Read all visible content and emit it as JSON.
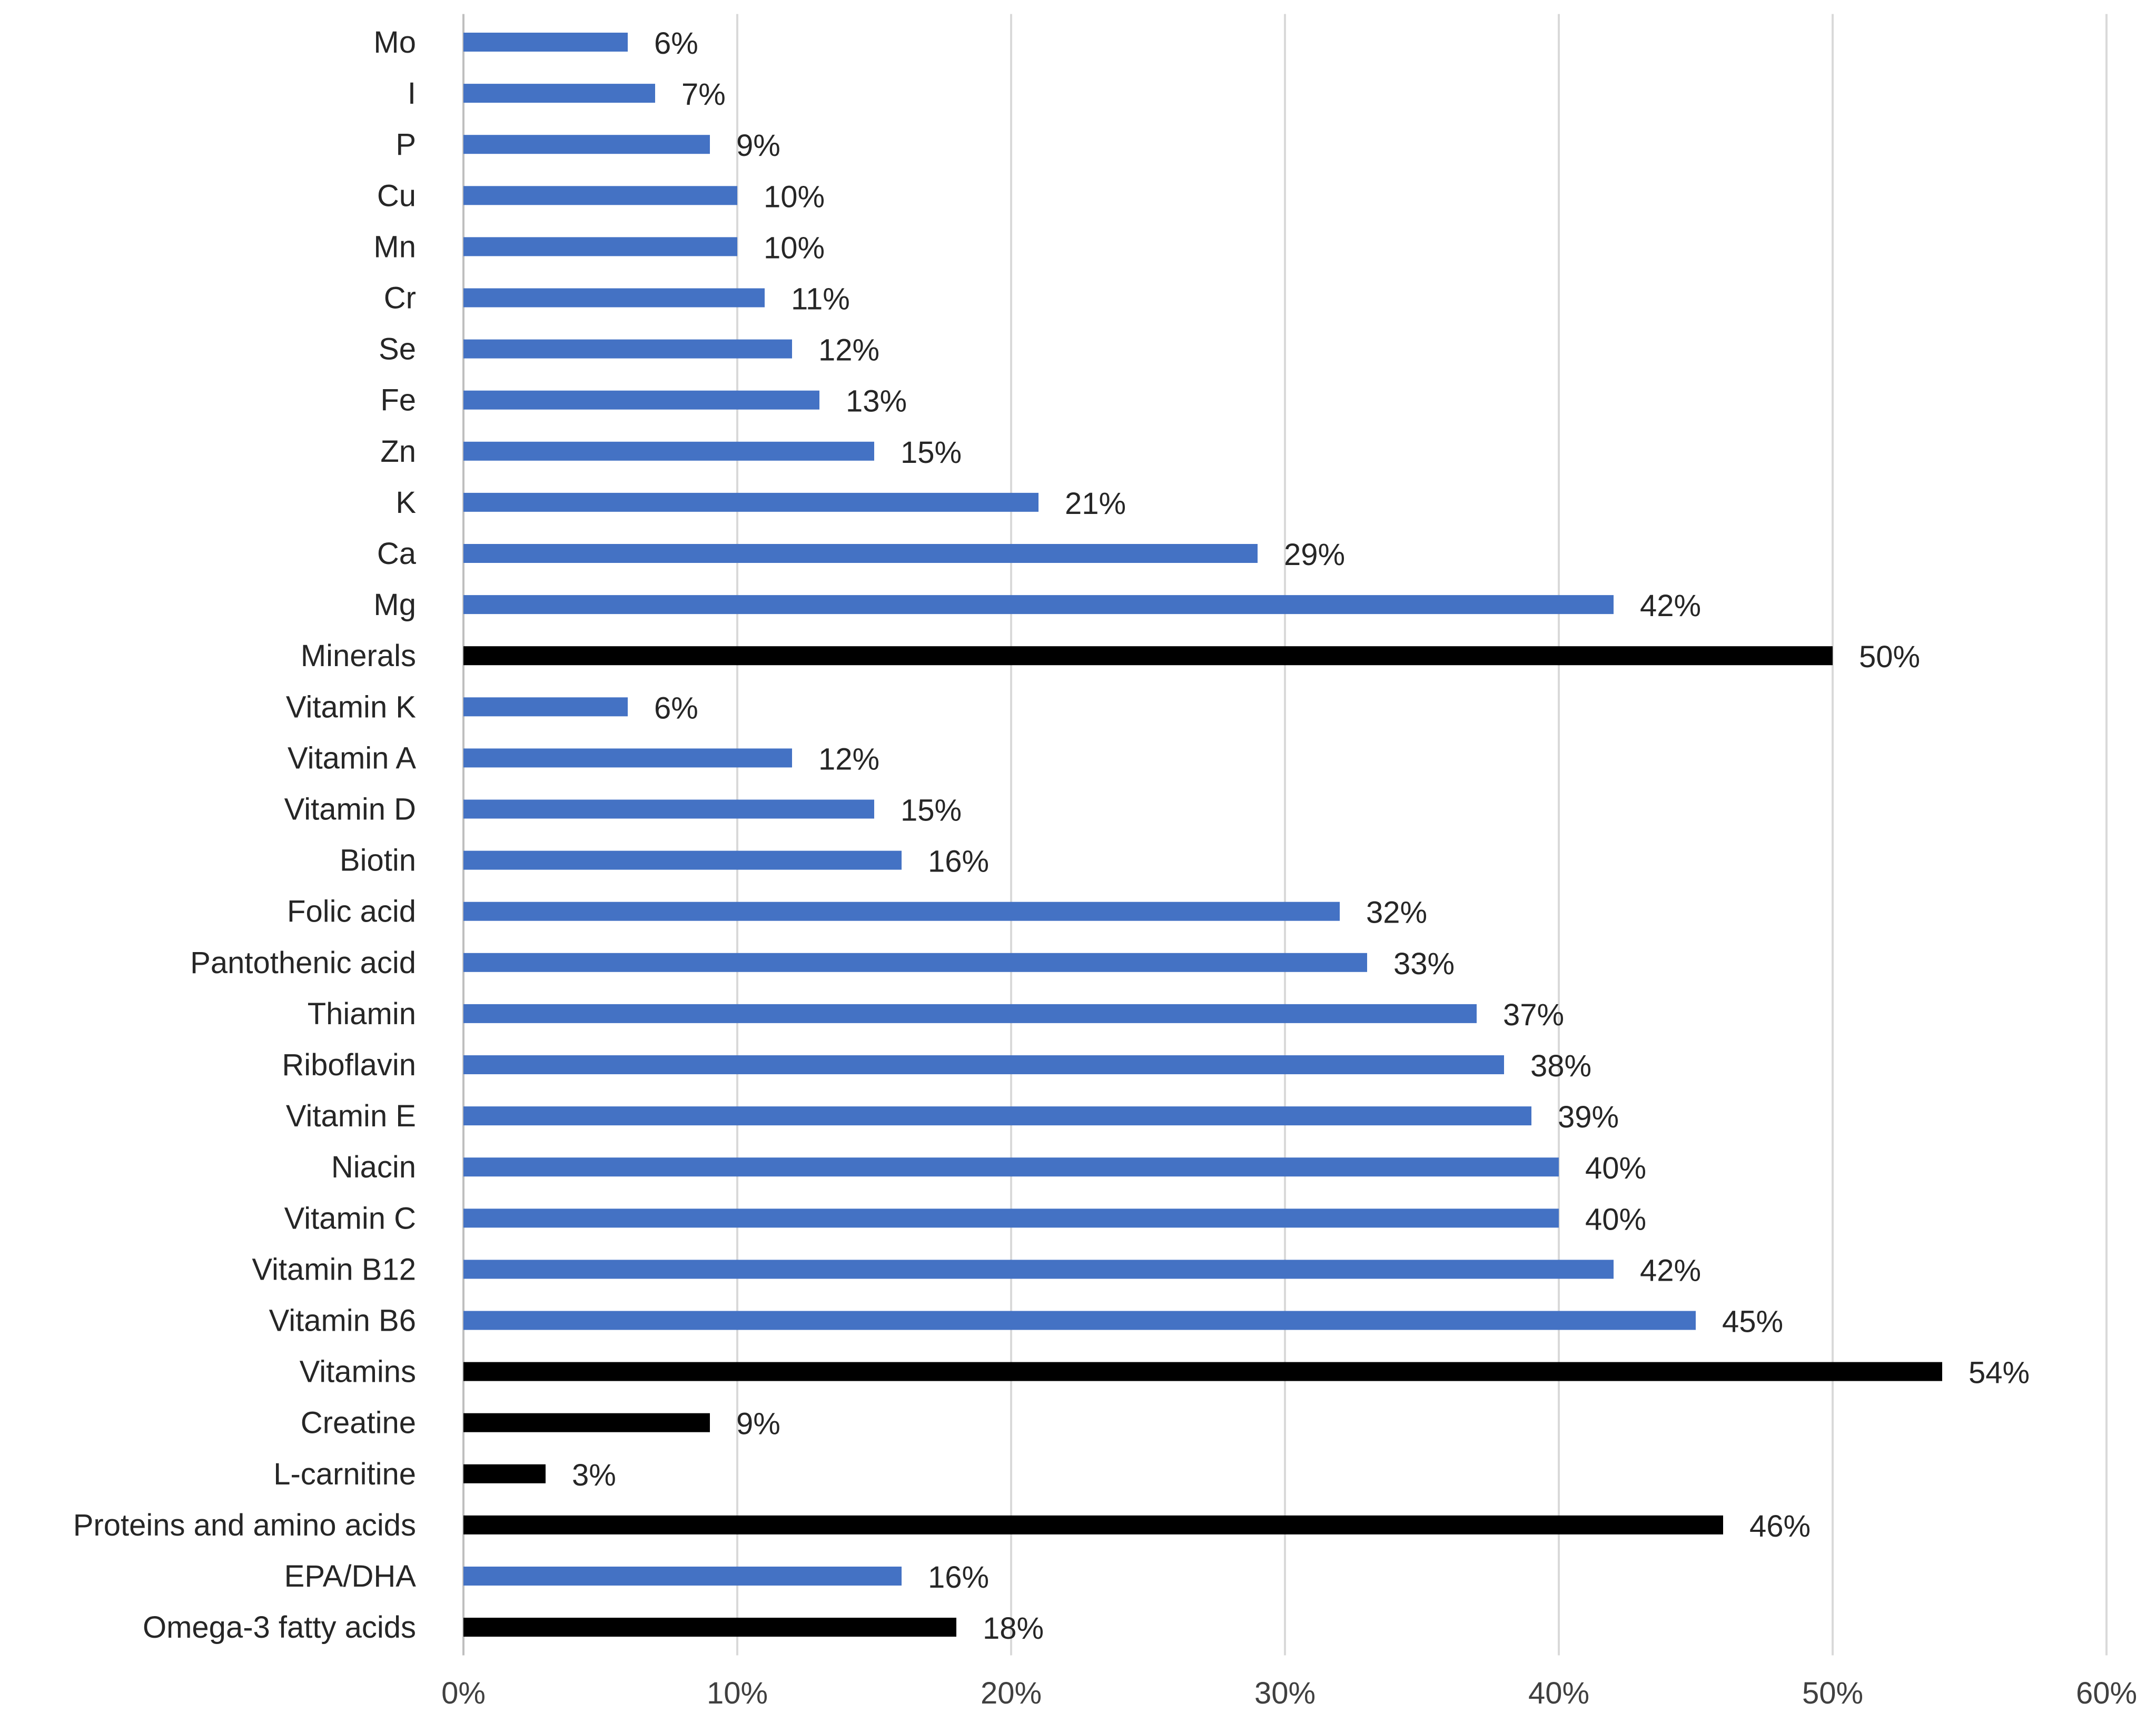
{
  "chart_data": {
    "type": "bar",
    "orientation": "horizontal",
    "title": "",
    "xlabel": "",
    "ylabel": "",
    "xlim": [
      0,
      60
    ],
    "x_ticks": [
      "0%",
      "10%",
      "20%",
      "30%",
      "40%",
      "50%",
      "60%"
    ],
    "grid": true,
    "value_suffix": "%",
    "colors": {
      "category_bar": "#000000",
      "item_bar": "#4472C4",
      "gridline": "#d9d9d9",
      "text": "#262626"
    },
    "bars": [
      {
        "label": "Mo",
        "value": 6,
        "display": "6%",
        "kind": "item"
      },
      {
        "label": "I",
        "value": 7,
        "display": "7%",
        "kind": "item"
      },
      {
        "label": "P",
        "value": 9,
        "display": "9%",
        "kind": "item"
      },
      {
        "label": "Cu",
        "value": 10,
        "display": "10%",
        "kind": "item"
      },
      {
        "label": "Mn",
        "value": 10,
        "display": "10%",
        "kind": "item"
      },
      {
        "label": "Cr",
        "value": 11,
        "display": "11%",
        "kind": "item"
      },
      {
        "label": "Se",
        "value": 12,
        "display": "12%",
        "kind": "item"
      },
      {
        "label": "Fe",
        "value": 13,
        "display": "13%",
        "kind": "item"
      },
      {
        "label": "Zn",
        "value": 15,
        "display": "15%",
        "kind": "item"
      },
      {
        "label": "K",
        "value": 21,
        "display": "21%",
        "kind": "item"
      },
      {
        "label": "Ca",
        "value": 29,
        "display": "29%",
        "kind": "item"
      },
      {
        "label": "Mg",
        "value": 42,
        "display": "42%",
        "kind": "item"
      },
      {
        "label": "Minerals",
        "value": 50,
        "display": "50%",
        "kind": "category"
      },
      {
        "label": "Vitamin K",
        "value": 6,
        "display": "6%",
        "kind": "item"
      },
      {
        "label": "Vitamin A",
        "value": 12,
        "display": "12%",
        "kind": "item"
      },
      {
        "label": "Vitamin D",
        "value": 15,
        "display": "15%",
        "kind": "item"
      },
      {
        "label": "Biotin",
        "value": 16,
        "display": "16%",
        "kind": "item"
      },
      {
        "label": "Folic acid",
        "value": 32,
        "display": "32%",
        "kind": "item"
      },
      {
        "label": "Pantothenic acid",
        "value": 33,
        "display": "33%",
        "kind": "item"
      },
      {
        "label": "Thiamin",
        "value": 37,
        "display": "37%",
        "kind": "item"
      },
      {
        "label": "Riboflavin",
        "value": 38,
        "display": "38%",
        "kind": "item"
      },
      {
        "label": "Vitamin E",
        "value": 39,
        "display": "39%",
        "kind": "item"
      },
      {
        "label": "Niacin",
        "value": 40,
        "display": "40%",
        "kind": "item"
      },
      {
        "label": "Vitamin C",
        "value": 40,
        "display": "40%",
        "kind": "item"
      },
      {
        "label": "Vitamin B12",
        "value": 42,
        "display": "42%",
        "kind": "item"
      },
      {
        "label": "Vitamin B6",
        "value": 45,
        "display": "45%",
        "kind": "item"
      },
      {
        "label": "Vitamins",
        "value": 54,
        "display": "54%",
        "kind": "category"
      },
      {
        "label": "Creatine",
        "value": 9,
        "display": "9%",
        "kind": "category"
      },
      {
        "label": "L-carnitine",
        "value": 3,
        "display": "3%",
        "kind": "category"
      },
      {
        "label": "Proteins and amino acids",
        "value": 46,
        "display": "46%",
        "kind": "category"
      },
      {
        "label": "EPA/DHA",
        "value": 16,
        "display": "16%",
        "kind": "item"
      },
      {
        "label": "Omega-3 fatty acids",
        "value": 18,
        "display": "18%",
        "kind": "category"
      }
    ]
  }
}
